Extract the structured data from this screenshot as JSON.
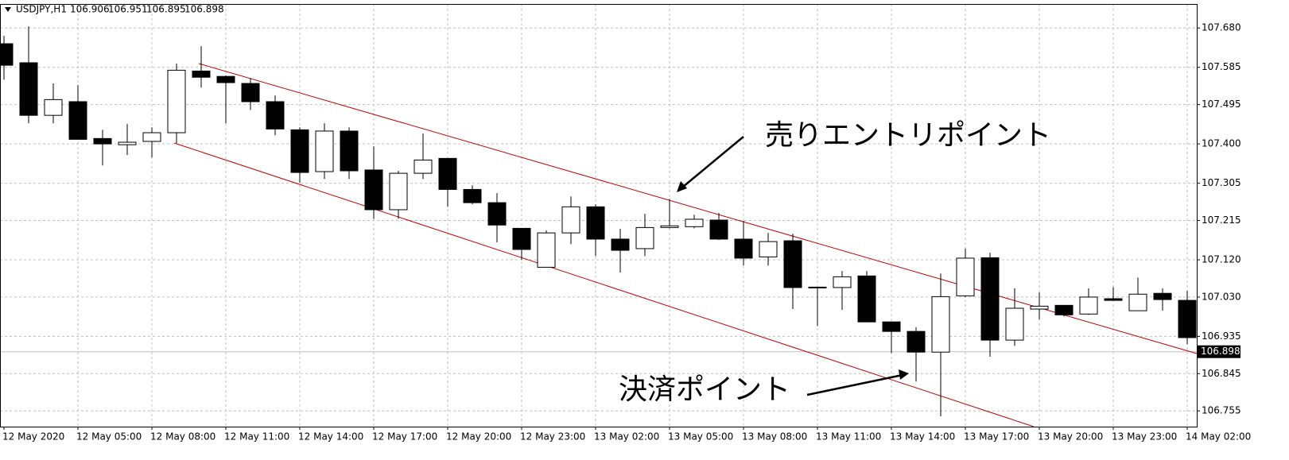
{
  "chart_data": {
    "type": "candlestick",
    "header": {
      "symbol": "USDJPY,H1",
      "values": [
        106.906,
        106.951,
        106.895,
        106.898
      ]
    },
    "categories": [
      "12 May 2020",
      null,
      null,
      "12 May 05:00",
      null,
      null,
      "12 May 08:00",
      null,
      null,
      "12 May 11:00",
      null,
      null,
      "12 May 14:00",
      null,
      null,
      "12 May 17:00",
      null,
      null,
      "12 May 20:00",
      null,
      null,
      "12 May 23:00",
      null,
      null,
      "13 May 02:00",
      null,
      null,
      "13 May 05:00",
      null,
      null,
      "13 May 08:00",
      null,
      null,
      "13 May 11:00",
      null,
      null,
      "13 May 14:00",
      null,
      null,
      "13 May 17:00",
      null,
      null,
      "13 May 20:00",
      null,
      null,
      "13 May 23:00",
      null,
      null,
      "14 May 02:00"
    ],
    "open": [
      107.642,
      107.596,
      107.469,
      107.502,
      107.413,
      107.398,
      107.406,
      107.427,
      107.576,
      107.563,
      107.546,
      107.502,
      107.434,
      107.333,
      107.431,
      107.337,
      107.241,
      107.329,
      107.365,
      107.29,
      107.258,
      107.196,
      107.102,
      107.185,
      107.248,
      107.17,
      107.147,
      107.198,
      107.2,
      107.216,
      107.17,
      107.127,
      107.166,
      107.054,
      107.053,
      107.081,
      106.97,
      106.947,
      106.897,
      107.033,
      107.125,
      106.926,
      107.001,
      107.01,
      106.989,
      107.026,
      106.997,
      107.039,
      107.022
    ],
    "high": [
      107.661,
      107.684,
      107.546,
      107.542,
      107.434,
      107.448,
      107.44,
      107.594,
      107.636,
      107.565,
      107.559,
      107.517,
      107.44,
      107.45,
      107.44,
      107.394,
      107.335,
      107.425,
      107.365,
      107.3,
      107.281,
      107.196,
      107.191,
      107.273,
      107.254,
      107.195,
      107.231,
      107.267,
      107.229,
      107.233,
      107.214,
      107.185,
      107.183,
      107.054,
      107.093,
      107.093,
      106.97,
      106.957,
      107.087,
      107.147,
      107.137,
      107.051,
      107.041,
      107.01,
      107.051,
      107.054,
      107.077,
      107.051,
      107.045
    ],
    "low": [
      107.555,
      107.45,
      107.45,
      107.411,
      107.348,
      107.373,
      107.367,
      107.402,
      107.536,
      107.45,
      107.482,
      107.421,
      107.306,
      107.315,
      107.315,
      107.219,
      107.219,
      107.315,
      107.248,
      107.254,
      107.162,
      107.12,
      107.101,
      107.158,
      107.129,
      107.089,
      107.129,
      107.196,
      107.196,
      107.168,
      107.106,
      107.106,
      107.001,
      106.96,
      106.999,
      106.97,
      106.895,
      106.826,
      106.742,
      107.03,
      106.886,
      106.912,
      106.976,
      106.983,
      106.987,
      107.022,
      106.997,
      106.997,
      106.916
    ],
    "close": [
      107.59,
      107.469,
      107.507,
      107.411,
      107.4,
      107.404,
      107.427,
      107.578,
      107.561,
      107.548,
      107.502,
      107.436,
      107.331,
      107.431,
      107.335,
      107.241,
      107.329,
      107.361,
      107.29,
      107.258,
      107.204,
      107.145,
      107.185,
      107.248,
      107.17,
      107.143,
      107.198,
      107.202,
      107.218,
      107.17,
      107.124,
      107.164,
      107.053,
      107.053,
      107.079,
      106.97,
      106.947,
      106.897,
      107.031,
      107.124,
      106.926,
      107.003,
      107.008,
      106.987,
      107.03,
      107.022,
      107.037,
      107.024,
      106.932
    ],
    "ylim": [
      106.717,
      107.738
    ],
    "yticks": [
      {
        "value": 107.68,
        "label": "107.680"
      },
      107.585,
      107.495,
      {
        "value": 107.4,
        "label": "107.400"
      },
      107.305,
      107.215,
      {
        "value": 107.12,
        "label": "107.120"
      },
      {
        "value": 107.03,
        "label": "107.030"
      },
      106.935,
      106.845,
      106.755
    ],
    "current_price": 106.898,
    "grid": true,
    "annotations": [
      {
        "text": "売りエントリポイント"
      },
      {
        "text": "決済ポイント"
      }
    ]
  }
}
